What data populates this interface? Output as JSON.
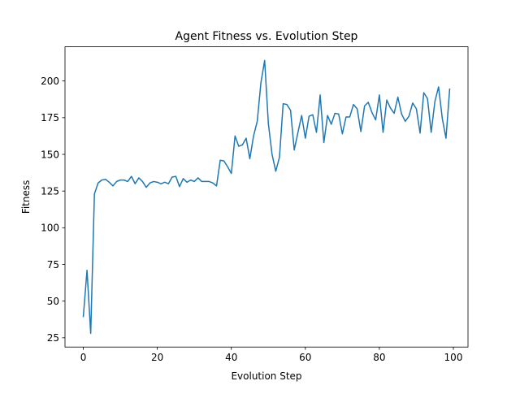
{
  "chart_data": {
    "type": "line",
    "title": "Agent Fitness vs. Evolution Step",
    "xlabel": "Evolution Step",
    "ylabel": "Fitness",
    "xlim": [
      -4.95,
      103.95
    ],
    "ylim": [
      18.7,
      223.3
    ],
    "xticks": [
      0,
      20,
      40,
      60,
      80,
      100
    ],
    "yticks": [
      25,
      50,
      75,
      100,
      125,
      150,
      175,
      200
    ],
    "grid": false,
    "legend": "none",
    "line_color": "#1f77b4",
    "series": [
      {
        "x": [
          0,
          1,
          2,
          3,
          4,
          5,
          6,
          7,
          8,
          9,
          10,
          11,
          12,
          13,
          14,
          15,
          16,
          17,
          18,
          19,
          20,
          21,
          22,
          23,
          24,
          25,
          26,
          27,
          28,
          29,
          30,
          31,
          32,
          33,
          34,
          35,
          36,
          37,
          38,
          39,
          40,
          41,
          42,
          43,
          44,
          45,
          46,
          47,
          48,
          49,
          50,
          51,
          52,
          53,
          54,
          55,
          56,
          57,
          58,
          59,
          60,
          61,
          62,
          63,
          64,
          65,
          66,
          67,
          68,
          69,
          70,
          71,
          72,
          73,
          74,
          75,
          76,
          77,
          78,
          79,
          80,
          81,
          82,
          83,
          84,
          85,
          86,
          87,
          88,
          89,
          90,
          91,
          92,
          93,
          94,
          95,
          96,
          97,
          98,
          99
        ],
        "values": [
          39.5,
          71,
          28,
          123,
          130.5,
          132.5,
          133,
          131,
          128.5,
          131.5,
          132.5,
          132.5,
          131.5,
          135,
          130,
          134,
          131.5,
          127.5,
          130.5,
          131.5,
          131,
          130,
          131,
          130,
          134.5,
          135,
          128,
          133.5,
          131,
          132.5,
          131.5,
          134,
          131.5,
          131.5,
          131.5,
          130.5,
          128.5,
          146,
          145.5,
          141.5,
          137,
          162.5,
          155.5,
          156.5,
          161,
          147,
          162.5,
          172.5,
          199,
          214,
          171,
          150,
          138.5,
          148,
          184.5,
          184,
          180,
          153,
          165,
          176.5,
          161,
          176,
          177,
          165,
          190.5,
          158,
          176.5,
          170.5,
          178,
          177.5,
          164,
          175.5,
          175.5,
          184,
          181,
          165.5,
          183,
          185.5,
          178.5,
          173.5,
          190.5,
          165,
          187,
          181.5,
          178,
          189,
          177.5,
          172.5,
          176,
          185,
          181,
          164.5,
          192,
          188,
          165,
          186,
          196,
          174.5,
          161,
          194.5
        ]
      }
    ]
  }
}
